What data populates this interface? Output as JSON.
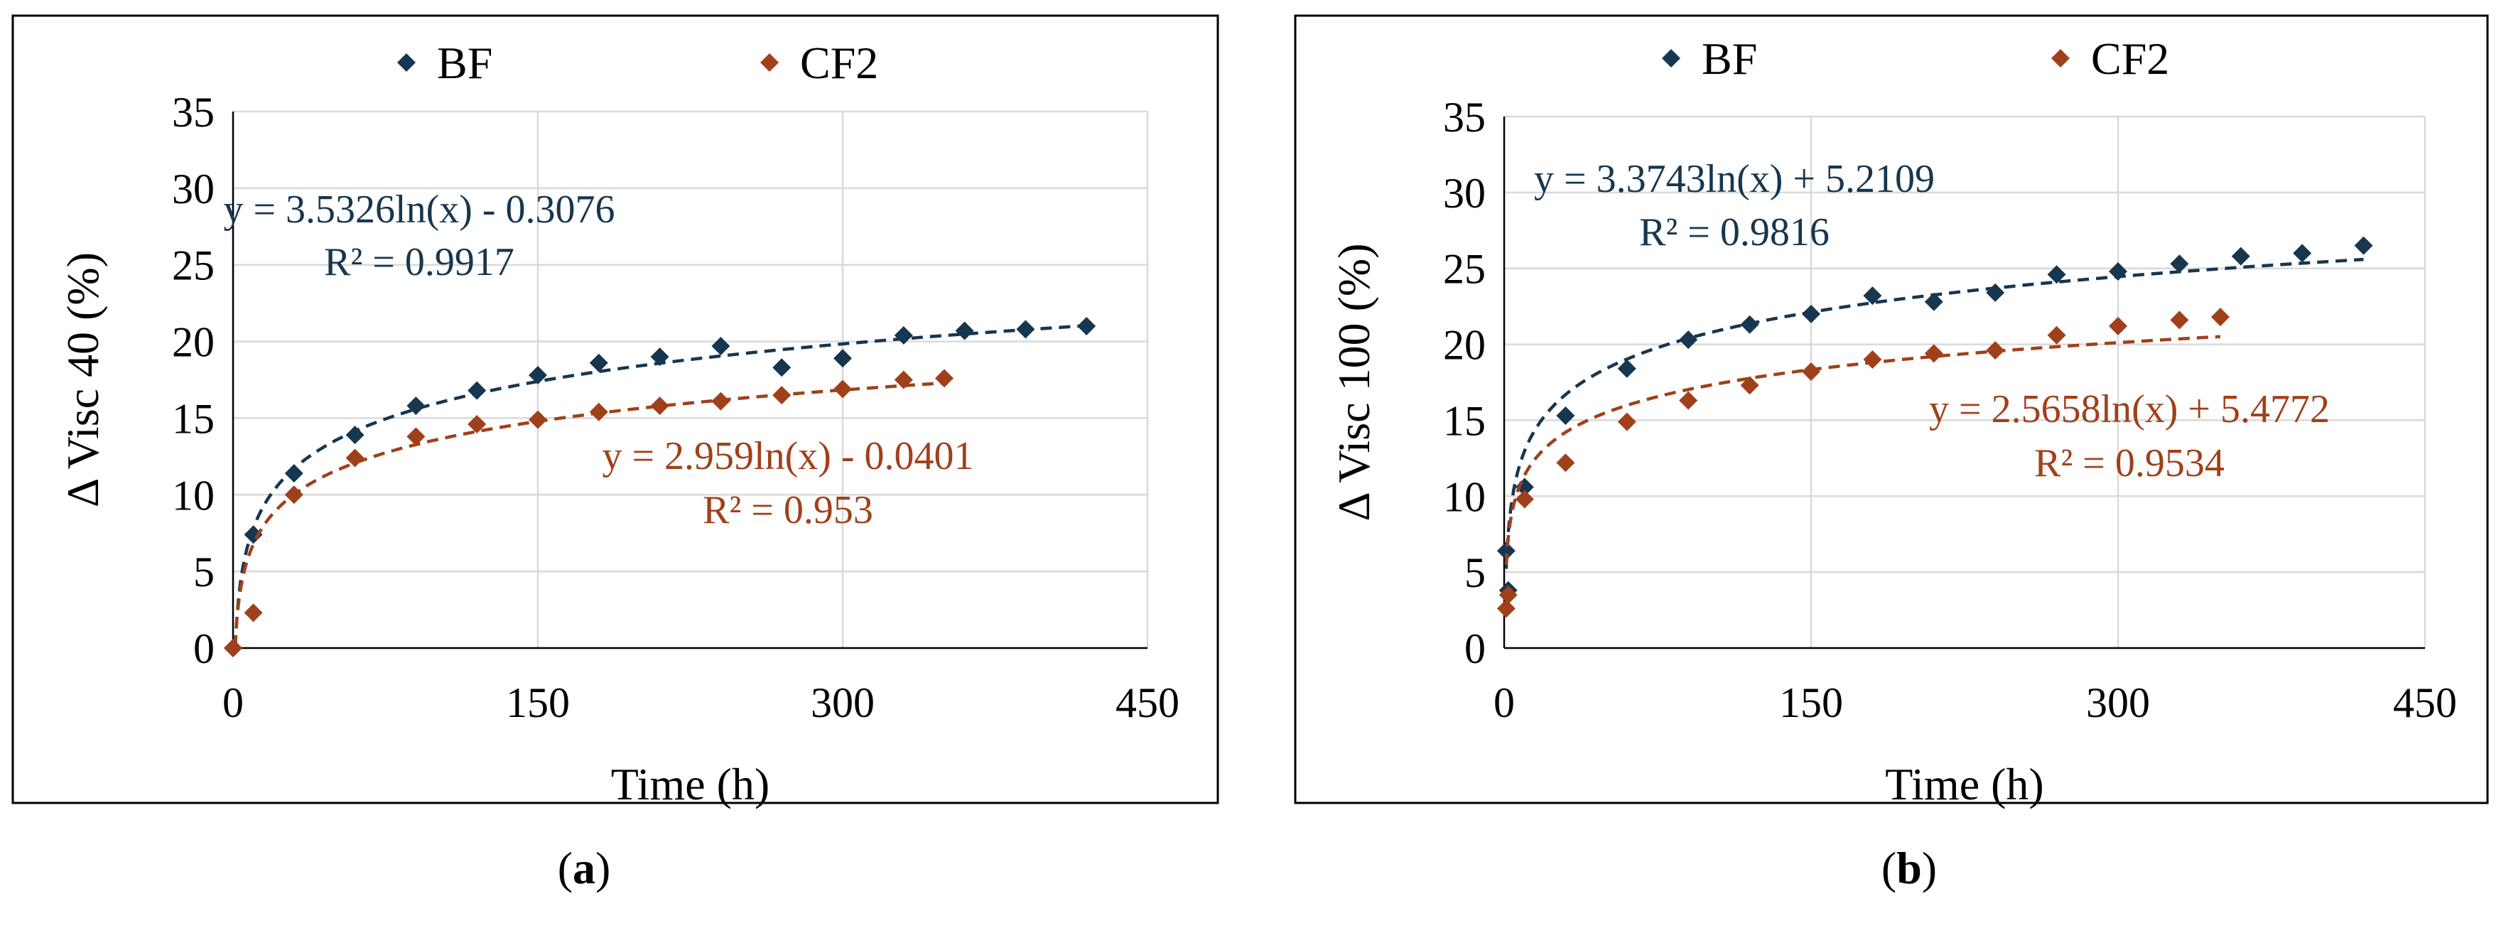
{
  "colors": {
    "bf": "#17364F",
    "cf2": "#A0401A",
    "grid": "#D9D9D9",
    "axis": "#000000"
  },
  "chart_data": [
    {
      "type": "scatter",
      "panel_label": "a",
      "xlabel": "Time (h)",
      "ylabel": "Δ Visc 40 (%)",
      "xlim": [
        0,
        450
      ],
      "ylim": [
        0,
        35
      ],
      "xticks": [
        "0",
        "150",
        "300",
        "450"
      ],
      "yticks": [
        "0",
        "5",
        "10",
        "15",
        "20",
        "25",
        "30",
        "35"
      ],
      "legend": [
        "BF",
        "CF2"
      ],
      "series": [
        {
          "name": "BF",
          "color": "#17364F",
          "x": [
            0,
            10,
            30,
            60,
            90,
            120,
            150,
            180,
            210,
            240,
            270,
            300,
            330,
            360,
            390,
            420
          ],
          "y": [
            0,
            7.4,
            11.4,
            13.9,
            15.8,
            16.8,
            17.8,
            18.6,
            19.0,
            19.7,
            18.3,
            18.9,
            20.4,
            20.7,
            20.8,
            21.0
          ],
          "trend": {
            "a": 3.5326,
            "b": -0.3076,
            "x_end": 420
          },
          "equation": "y = 3.5326ln(x) - 0.3076",
          "r2": "R² = 0.9917"
        },
        {
          "name": "CF2",
          "color": "#A0401A",
          "x": [
            0,
            10,
            30,
            60,
            90,
            120,
            150,
            180,
            210,
            240,
            270,
            300,
            330,
            350
          ],
          "y": [
            0,
            2.3,
            10.0,
            12.4,
            13.8,
            14.6,
            14.9,
            15.4,
            15.8,
            16.1,
            16.5,
            16.9,
            17.5,
            17.6
          ],
          "trend": {
            "a": 2.959,
            "b": -0.0401,
            "x_end": 350
          },
          "equation": "y = 2.959ln(x) - 0.0401",
          "r2": "R² = 0.953"
        }
      ]
    },
    {
      "type": "scatter",
      "panel_label": "b",
      "xlabel": "Time (h)",
      "ylabel": "Δ Visc 100 (%)",
      "xlim": [
        0,
        450
      ],
      "ylim": [
        0,
        35
      ],
      "xticks": [
        "0",
        "150",
        "300",
        "450"
      ],
      "yticks": [
        "0",
        "5",
        "10",
        "15",
        "20",
        "25",
        "30",
        "35"
      ],
      "legend": [
        "BF",
        "CF2"
      ],
      "series": [
        {
          "name": "BF",
          "color": "#17364F",
          "x": [
            1,
            2,
            10,
            30,
            60,
            90,
            120,
            150,
            180,
            210,
            240,
            270,
            300,
            330,
            360,
            390,
            420
          ],
          "y": [
            6.4,
            3.8,
            10.6,
            15.3,
            18.4,
            20.3,
            21.3,
            22.0,
            23.2,
            22.8,
            23.4,
            24.6,
            24.8,
            25.3,
            25.8,
            26.0,
            26.5
          ],
          "trend": {
            "a": 3.3743,
            "b": 5.2109,
            "x_end": 420
          },
          "equation": "y = 3.3743ln(x) + 5.2109",
          "r2": "R² = 0.9816"
        },
        {
          "name": "CF2",
          "color": "#A0401A",
          "x": [
            1,
            2,
            10,
            30,
            60,
            90,
            120,
            150,
            180,
            210,
            240,
            270,
            300,
            330,
            350
          ],
          "y": [
            2.6,
            3.5,
            9.8,
            12.2,
            14.9,
            16.3,
            17.3,
            18.2,
            19.0,
            19.4,
            19.6,
            20.6,
            21.2,
            21.6,
            21.8
          ],
          "trend": {
            "a": 2.5658,
            "b": 5.4772,
            "x_end": 350
          },
          "equation": "y = 2.5658ln(x) + 5.4772",
          "r2": "R² = 0.9534"
        }
      ]
    }
  ]
}
